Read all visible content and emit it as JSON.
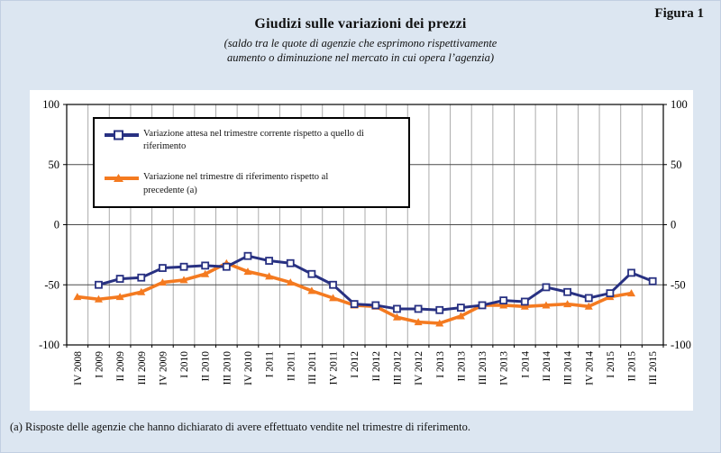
{
  "figure_label": "Figura 1",
  "title": "Giudizi sulle variazioni dei prezzi",
  "subtitle": {
    "line1": "(saldo tra le quote di agenzie che esprimono rispettivamente",
    "line2": "aumento o diminuzione nel mercato in cui opera l’agenzia)"
  },
  "footnote": "(a) Risposte delle agenzie che hanno dichiarato di avere effettuato vendite nel trimestre di riferimento.",
  "colors": {
    "background": "#dce6f1",
    "panel": "#ffffff",
    "frame": "#000000",
    "grid_vertical": "#ababab",
    "grid_horizontal": "#4a4a4a",
    "series_blue": "#283182",
    "series_orange": "#f47a20"
  },
  "chart_data": {
    "type": "line",
    "title": "Giudizi sulle variazioni dei prezzi",
    "xlabel": "",
    "ylabel": "",
    "ylim": [
      -100,
      100
    ],
    "y_ticks": [
      100,
      50,
      0,
      -50,
      -100
    ],
    "grid": true,
    "legend_position": "top-left",
    "categories": [
      "IV 2008",
      "I 2009",
      "II 2009",
      "III 2009",
      "IV 2009",
      "I 2010",
      "II 2010",
      "III 2010",
      "IV 2010",
      "I 2011",
      "II 2011",
      "III 2011",
      "IV 2011",
      "I 2012",
      "II 2012",
      "III 2012",
      "IV 2012",
      "I 2013",
      "II 2013",
      "III 2013",
      "IV 2013",
      "I 2014",
      "II 2014",
      "III 2014",
      "IV 2014",
      "I 2015",
      "II 2015",
      "III 2015"
    ],
    "series": [
      {
        "name": "Variazione attesa nel trimestre corrente rispetto a quello di riferimento",
        "legend_lines": [
          "Variazione attesa nel trimestre corrente rispetto a quello di",
          "riferimento"
        ],
        "color": "#283182",
        "marker": "square-open",
        "values": [
          null,
          -50,
          -45,
          -44,
          -36,
          -35,
          -34,
          -35,
          -26,
          -30,
          -32,
          -41,
          -50,
          -66,
          -67,
          -70,
          -70,
          -71,
          -69,
          -67,
          -63,
          -64,
          -52,
          -56,
          -61,
          -57,
          -40,
          -47
        ]
      },
      {
        "name": "Variazione nel trimestre di riferimento rispetto al precedente (a)",
        "legend_lines": [
          "Variazione nel trimestre di riferimento rispetto al",
          "precedente (a)"
        ],
        "color": "#f47a20",
        "marker": "triangle-filled",
        "values": [
          -60,
          -62,
          -60,
          -56,
          -48,
          -46,
          -41,
          -32,
          -39,
          -43,
          -48,
          -55,
          -61,
          -67,
          -68,
          -77,
          -81,
          -82,
          -76,
          -67,
          -67,
          -68,
          -67,
          -66,
          -68,
          -60,
          -57,
          null
        ]
      }
    ]
  }
}
